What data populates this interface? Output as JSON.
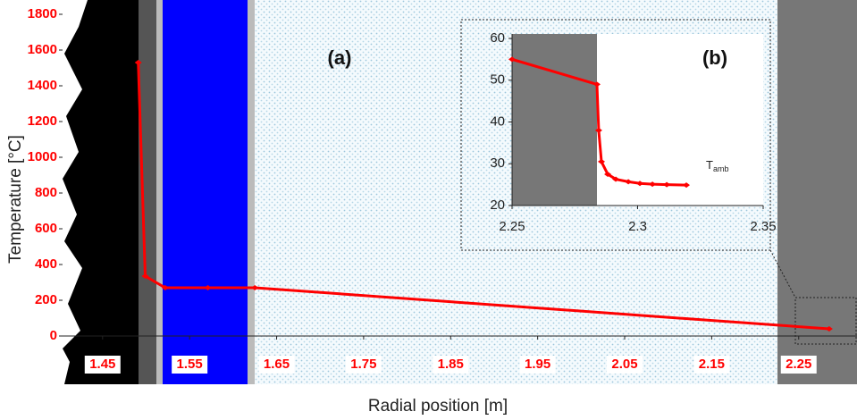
{
  "chart_data": [
    {
      "type": "line",
      "label": "(a)",
      "x_label": "Radial position [m]",
      "y_label": "Temperature [°C]",
      "xlim": [
        1.404,
        2.317
      ],
      "ylim": [
        -270,
        1800
      ],
      "xticks": [
        1.45,
        1.55,
        1.65,
        1.75,
        1.85,
        1.95,
        2.05,
        2.15,
        2.25
      ],
      "yticks": [
        0,
        200,
        400,
        600,
        800,
        1000,
        1200,
        1400,
        1600,
        1800
      ],
      "series": [
        {
          "color": "#ff0000",
          "x": [
            1.491,
            1.499,
            1.522,
            1.571,
            1.625,
            2.285
          ],
          "values": [
            1530,
            335,
            270,
            270,
            270,
            40
          ]
        }
      ]
    },
    {
      "type": "line",
      "label": "(b)",
      "annotation": {
        "text": "T",
        "sub": "amb"
      },
      "xlim": [
        2.25,
        2.35
      ],
      "ylim": [
        20,
        60
      ],
      "xticks": [
        2.25,
        2.3,
        2.35
      ],
      "yticks": [
        20,
        30,
        40,
        50,
        60
      ],
      "series": [
        {
          "color": "#ff0000",
          "x": [
            2.25,
            2.2838,
            2.2845,
            2.2856,
            2.2881,
            2.2913,
            2.2963,
            2.3009,
            2.3059,
            2.3116,
            2.3194
          ],
          "values": [
            55,
            49,
            38,
            30.5,
            27.5,
            26.3,
            25.7,
            25.3,
            25.1,
            25,
            24.9
          ]
        }
      ]
    }
  ]
}
